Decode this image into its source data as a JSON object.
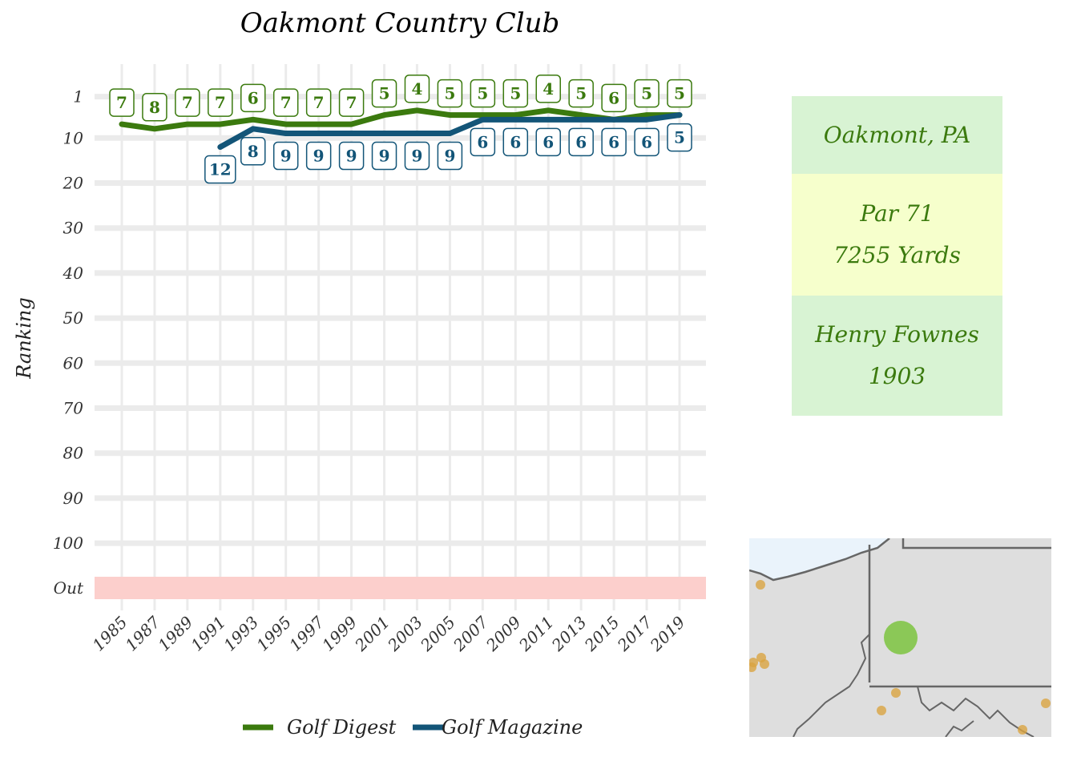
{
  "chart_data": {
    "type": "line",
    "title": "Oakmont Country Club",
    "ylabel": "Ranking",
    "xlabel": "",
    "x": [
      1985,
      1987,
      1989,
      1991,
      1993,
      1995,
      1997,
      1999,
      2001,
      2003,
      2005,
      2007,
      2009,
      2011,
      2013,
      2015,
      2017,
      2019
    ],
    "x_tick_labels": [
      "1985",
      "1987",
      "1989",
      "1991",
      "1993",
      "1995",
      "1997",
      "1999",
      "2001",
      "2003",
      "2005",
      "2007",
      "2009",
      "2011",
      "2013",
      "2015",
      "2017",
      "2019"
    ],
    "y_tick_labels": [
      "1",
      "10",
      "20",
      "30",
      "40",
      "50",
      "60",
      "70",
      "80",
      "90",
      "100",
      "Out"
    ],
    "y_reversed": true,
    "out_band_color": "#fccfcc",
    "series": [
      {
        "name": "Golf Digest",
        "color": "#3b7a0e",
        "values": [
          7,
          8,
          7,
          7,
          6,
          7,
          7,
          7,
          5,
          4,
          5,
          5,
          5,
          4,
          5,
          6,
          5,
          5
        ]
      },
      {
        "name": "Golf Magazine",
        "color": "#135578",
        "values": [
          null,
          null,
          null,
          12,
          8,
          9,
          9,
          9,
          9,
          9,
          9,
          6,
          6,
          6,
          6,
          6,
          6,
          5
        ]
      }
    ],
    "legend_position": "bottom",
    "grid": true
  },
  "info": {
    "location": "Oakmont, PA",
    "par": "Par 71",
    "yards": "7255 Yards",
    "architect": "Henry Fownes",
    "year": "1903"
  },
  "map": {
    "land_color": "#dedede",
    "water_color": "#eaf3fb",
    "highlight_color": "#7dc43f",
    "point_color": "#d9a441"
  }
}
